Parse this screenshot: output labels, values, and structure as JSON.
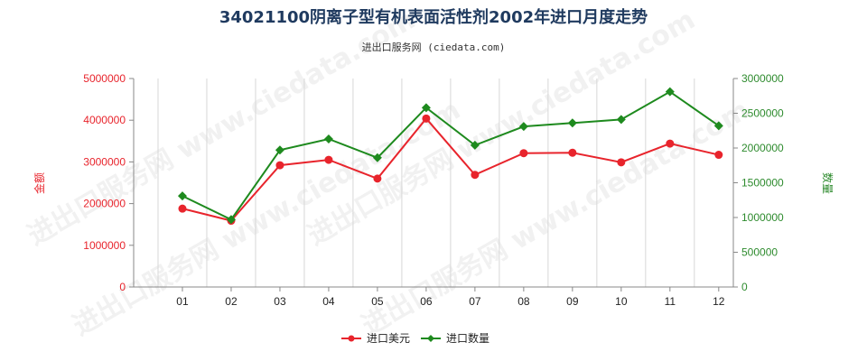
{
  "header": {
    "title": "34021100阴离子型有机表面活性剂2002年进口月度走势",
    "subtitle": "进出口服务网 (ciedata.com)"
  },
  "watermark": {
    "text": "进出口服务网 www.ciedata.com"
  },
  "chart_data": {
    "type": "line",
    "title": "34021100阴离子型有机表面活性剂2002年进口月度走势",
    "subtitle": "进出口服务网 (ciedata.com)",
    "categories": [
      "01",
      "02",
      "03",
      "04",
      "05",
      "06",
      "07",
      "08",
      "09",
      "10",
      "11",
      "12"
    ],
    "series": [
      {
        "name": "进口美元",
        "axis": "left",
        "color": "#e8242c",
        "marker": "circle",
        "values": [
          1880000,
          1590000,
          2920000,
          3050000,
          2600000,
          4040000,
          2690000,
          3210000,
          3220000,
          2990000,
          3440000,
          3170000
        ]
      },
      {
        "name": "进口数量",
        "axis": "right",
        "color": "#1e8a1e",
        "marker": "diamond",
        "values": [
          1310000,
          970000,
          1970000,
          2130000,
          1860000,
          2580000,
          2040000,
          2310000,
          2360000,
          2410000,
          2810000,
          2320000
        ]
      }
    ],
    "y_left": {
      "label": "金额",
      "ylim": [
        0,
        5000000
      ],
      "ticks": [
        "0",
        "1000000",
        "2000000",
        "3000000",
        "4000000",
        "5000000"
      ]
    },
    "y_right": {
      "label": "数量",
      "ylim": [
        0,
        3000000
      ],
      "ticks": [
        "0",
        "500000",
        "1000000",
        "1500000",
        "2000000",
        "2500000",
        "3000000"
      ]
    },
    "grid": "vertical",
    "legend": "bottom-center"
  }
}
